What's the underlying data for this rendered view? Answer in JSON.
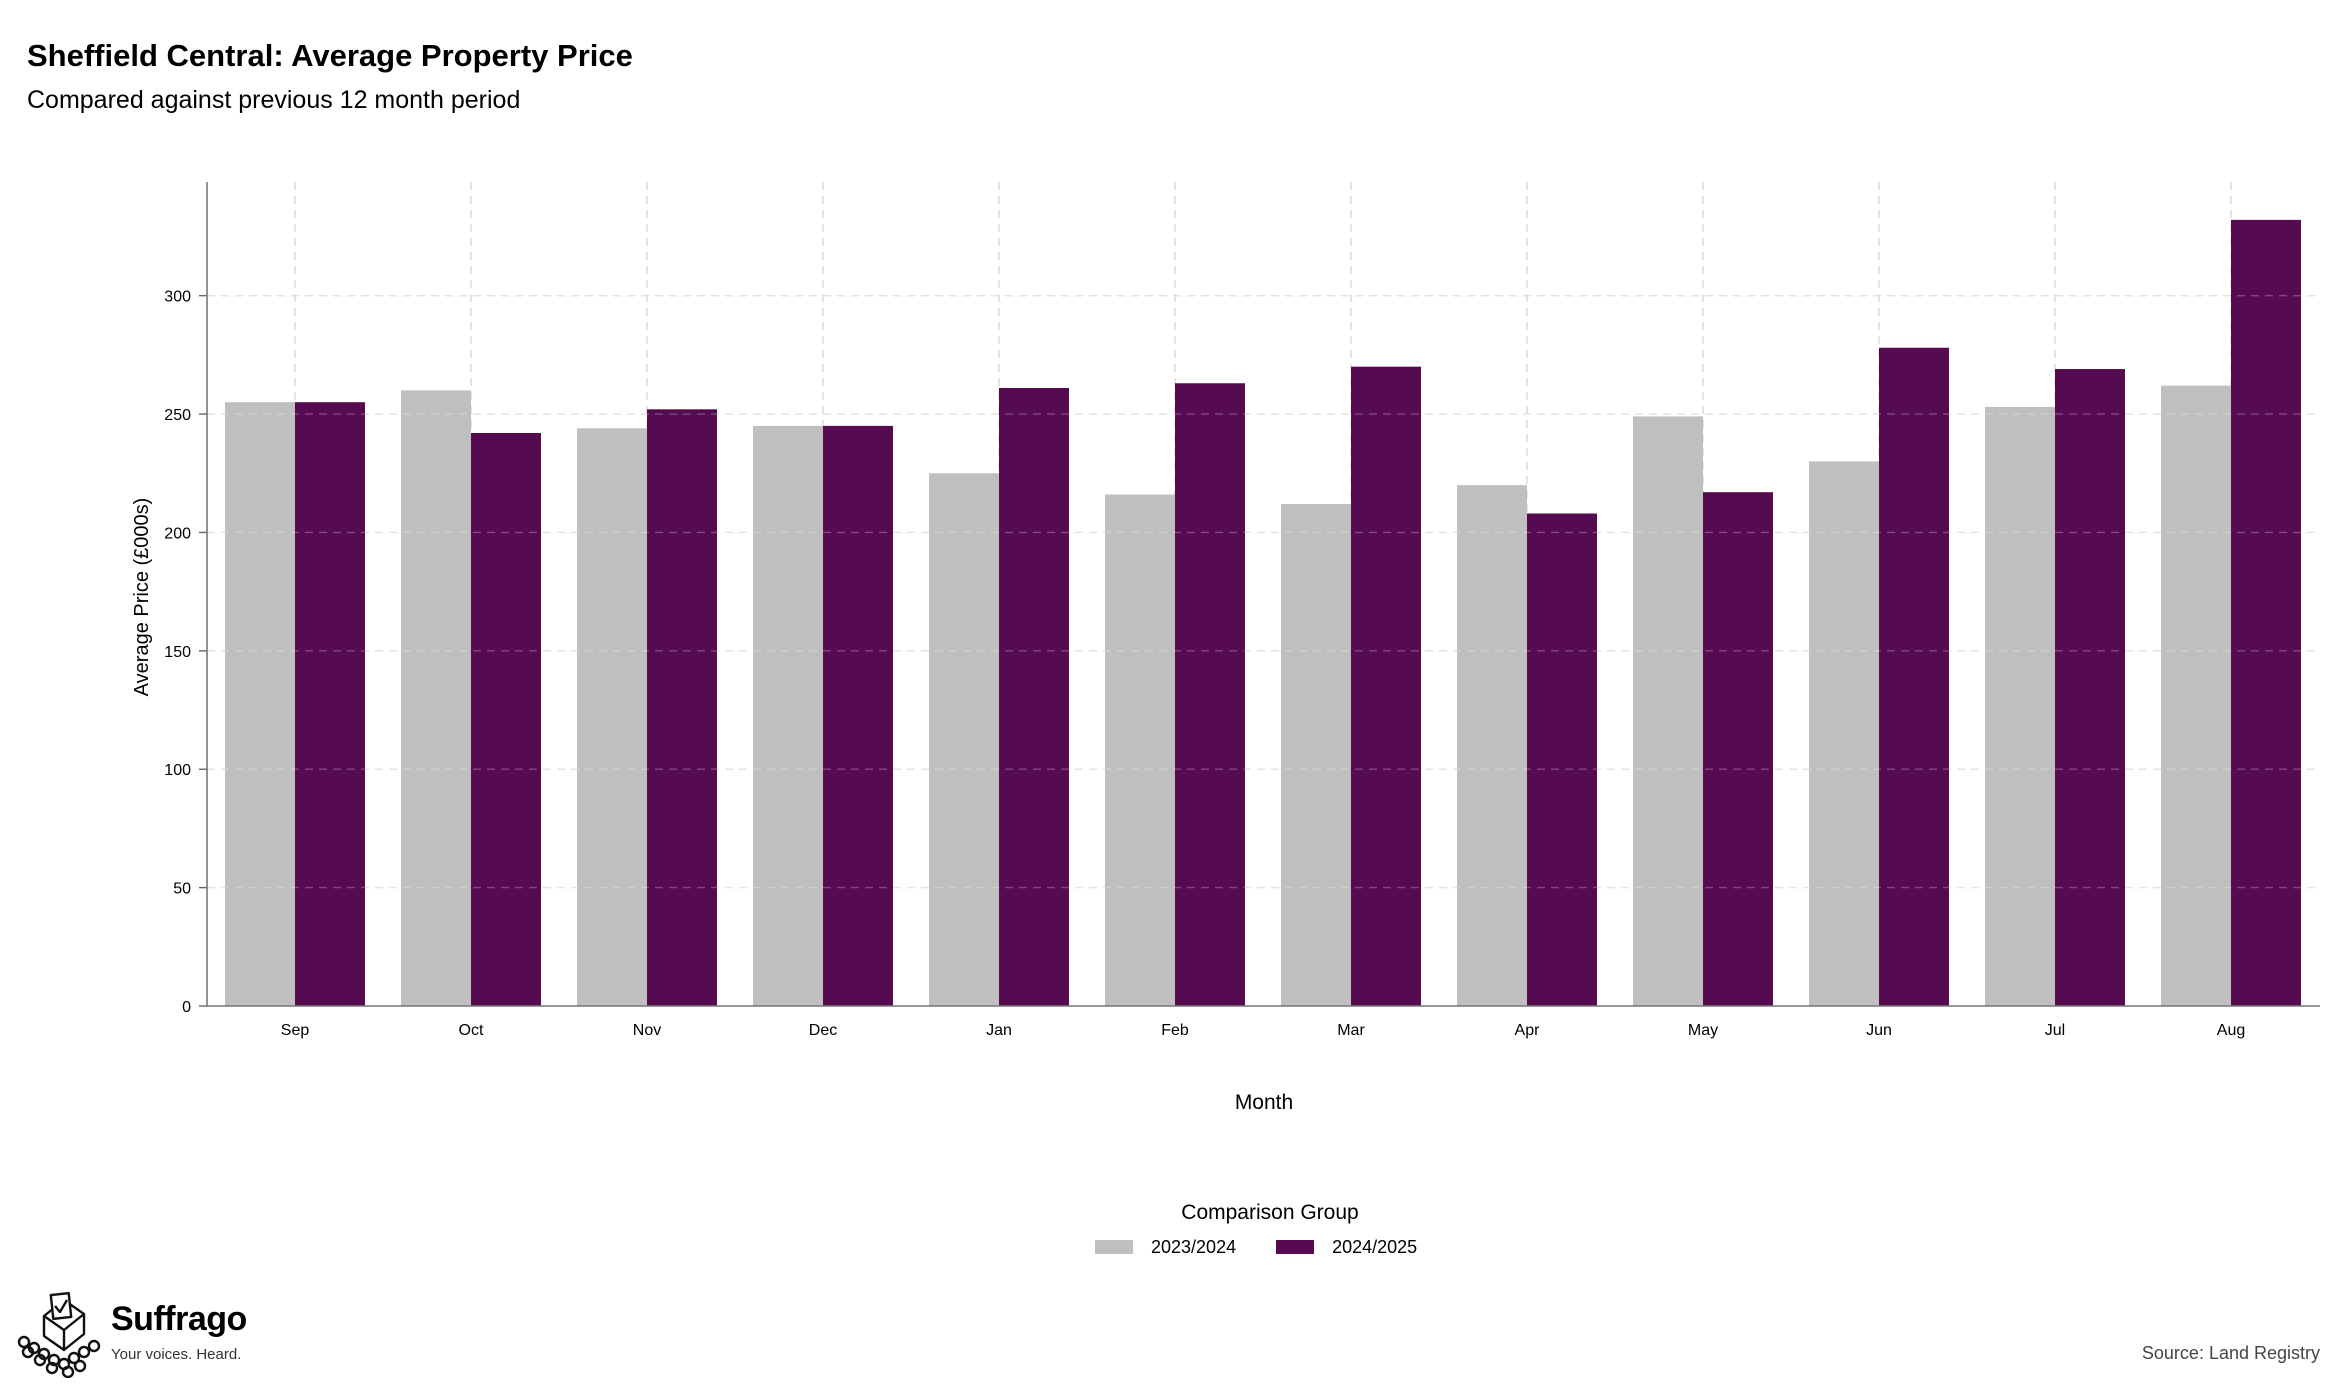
{
  "chart_data": {
    "type": "bar",
    "title": "Sheffield Central: Average Property Price",
    "subtitle": "Compared against previous 12 month period",
    "xlabel": "Month",
    "ylabel": "Average Price (£000s)",
    "categories": [
      "Sep",
      "Oct",
      "Nov",
      "Dec",
      "Jan",
      "Feb",
      "Mar",
      "Apr",
      "May",
      "Jun",
      "Jul",
      "Aug"
    ],
    "series": [
      {
        "name": "2023/2024",
        "color": "#bfbfbf",
        "values": [
          255,
          260,
          244,
          245,
          225,
          216,
          212,
          220,
          249,
          230,
          253,
          262
        ]
      },
      {
        "name": "2024/2025",
        "color": "#560b51",
        "values": [
          255,
          242,
          252,
          245,
          261,
          263,
          270,
          208,
          217,
          278,
          269,
          332
        ]
      }
    ],
    "ylim": [
      0,
      348
    ],
    "yticks": [
      0,
      50,
      100,
      150,
      200,
      250,
      300
    ],
    "grid": true,
    "legend_title": "Comparison Group",
    "legend_position": "bottom-center"
  },
  "branding": {
    "name": "Suffrago",
    "tagline": "Your voices. Heard.",
    "logo_icon": "ballot-box-icon"
  },
  "source": "Source: Land Registry"
}
